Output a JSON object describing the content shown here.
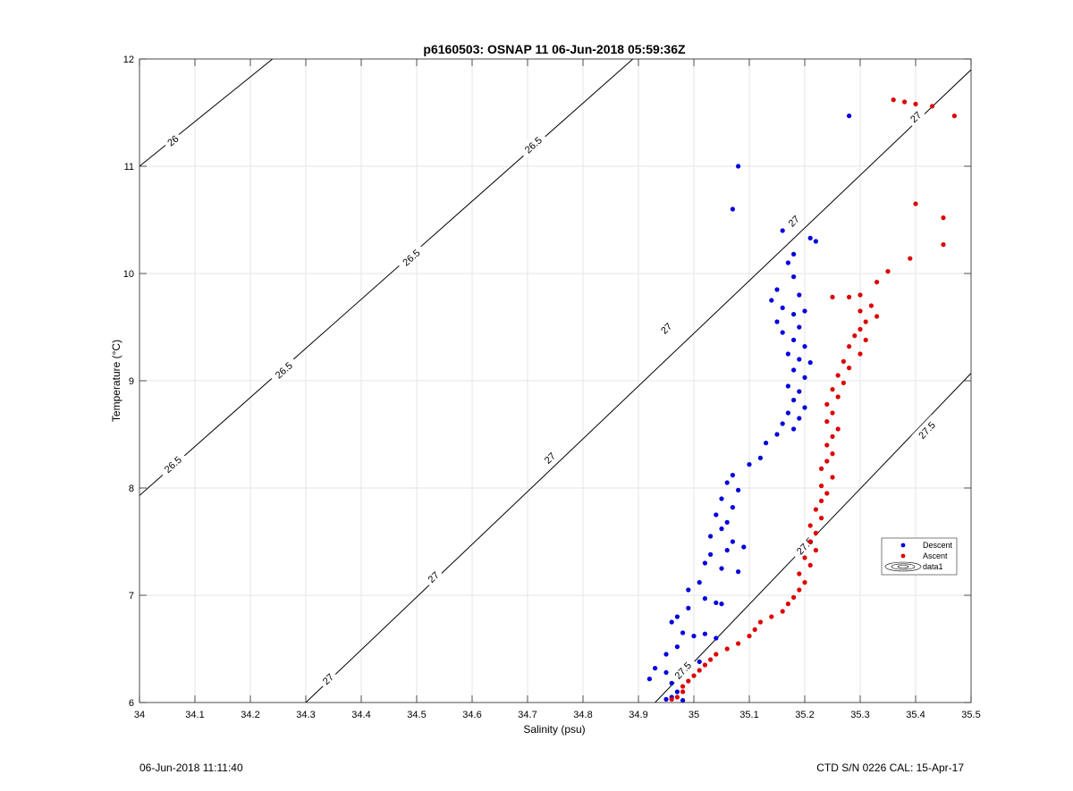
{
  "footer": {
    "timestamp": "06-Jun-2018 11:11:40",
    "instrument": "CTD S/N 0226  CAL: 15-Apr-17"
  },
  "chart_data": {
    "type": "scatter",
    "title": "p6160503: OSNAP 11 06-Jun-2018 05:59:36Z",
    "xlabel": "Salinity (psu)",
    "ylabel": "Temperature (°C)",
    "xlim": [
      34,
      35.5
    ],
    "ylim": [
      6,
      12
    ],
    "xticks": [
      34,
      34.1,
      34.2,
      34.3,
      34.4,
      34.5,
      34.6,
      34.7,
      34.8,
      34.9,
      35,
      35.1,
      35.2,
      35.3,
      35.4,
      35.5
    ],
    "xtick_labels": [
      "34",
      "34.1",
      "34.2",
      "34.3",
      "34.4",
      "34.5",
      "34.6",
      "34.7",
      "34.8",
      "34.9",
      "35",
      "35.1",
      "35.2",
      "35.3",
      "35.4",
      "35.5"
    ],
    "yticks": [
      6,
      7,
      8,
      9,
      10,
      11,
      12
    ],
    "ytick_labels": [
      "6",
      "7",
      "8",
      "9",
      "10",
      "11",
      "12"
    ],
    "grid": true,
    "legend_position": "right",
    "colors": {
      "descent": "#0000dd",
      "ascent": "#dd0000",
      "contour": "#000000",
      "grid": "#e6e6e6"
    },
    "legend": [
      {
        "label": "Descent",
        "marker": "dot",
        "color": "#0000dd"
      },
      {
        "label": "Ascent",
        "marker": "dot",
        "color": "#dd0000"
      },
      {
        "label": "data1",
        "marker": "contour",
        "color": "#000000"
      }
    ],
    "contours": [
      {
        "level": "26",
        "points": [
          [
            34.0,
            11.0
          ],
          [
            34.24,
            12.0
          ]
        ],
        "labels": [
          [
            34.06,
            11.24
          ]
        ]
      },
      {
        "level": "26.5",
        "points": [
          [
            34.0,
            7.93
          ],
          [
            34.89,
            12.0
          ]
        ],
        "labels": [
          [
            34.06,
            8.22
          ],
          [
            34.26,
            9.1
          ],
          [
            34.49,
            10.15
          ],
          [
            34.71,
            11.2
          ]
        ]
      },
      {
        "level": "27",
        "points": [
          [
            34.3,
            6.0
          ],
          [
            35.5,
            11.9
          ]
        ],
        "labels": [
          [
            34.34,
            6.22
          ],
          [
            34.53,
            7.17
          ],
          [
            34.74,
            8.28
          ],
          [
            34.95,
            9.49
          ],
          [
            35.18,
            10.49
          ],
          [
            35.4,
            11.46
          ]
        ]
      },
      {
        "level": "27.5",
        "points": [
          [
            34.93,
            6.0
          ],
          [
            35.5,
            9.07
          ]
        ],
        "labels": [
          [
            34.98,
            6.3
          ],
          [
            35.2,
            7.46
          ],
          [
            35.42,
            8.54
          ]
        ]
      }
    ],
    "series": [
      {
        "name": "Descent",
        "color": "#0000dd",
        "points": [
          [
            35.08,
            11.0
          ],
          [
            35.07,
            10.6
          ],
          [
            35.28,
            11.47
          ],
          [
            35.21,
            10.33
          ],
          [
            35.22,
            10.3
          ],
          [
            35.16,
            10.4
          ],
          [
            35.18,
            10.18
          ],
          [
            35.17,
            10.1
          ],
          [
            35.18,
            9.97
          ],
          [
            35.15,
            9.85
          ],
          [
            35.19,
            9.8
          ],
          [
            35.14,
            9.75
          ],
          [
            35.16,
            9.68
          ],
          [
            35.18,
            9.62
          ],
          [
            35.2,
            9.65
          ],
          [
            35.15,
            9.55
          ],
          [
            35.19,
            9.5
          ],
          [
            35.16,
            9.45
          ],
          [
            35.18,
            9.38
          ],
          [
            35.2,
            9.32
          ],
          [
            35.17,
            9.25
          ],
          [
            35.19,
            9.2
          ],
          [
            35.21,
            9.17
          ],
          [
            35.18,
            9.1
          ],
          [
            35.2,
            9.03
          ],
          [
            35.17,
            8.95
          ],
          [
            35.19,
            8.9
          ],
          [
            35.18,
            8.82
          ],
          [
            35.2,
            8.75
          ],
          [
            35.17,
            8.7
          ],
          [
            35.19,
            8.65
          ],
          [
            35.16,
            8.6
          ],
          [
            35.18,
            8.55
          ],
          [
            35.15,
            8.5
          ],
          [
            35.13,
            8.42
          ],
          [
            35.12,
            8.28
          ],
          [
            35.1,
            8.22
          ],
          [
            35.07,
            8.12
          ],
          [
            35.06,
            8.05
          ],
          [
            35.08,
            7.98
          ],
          [
            35.05,
            7.9
          ],
          [
            35.07,
            7.82
          ],
          [
            35.04,
            7.75
          ],
          [
            35.06,
            7.68
          ],
          [
            35.05,
            7.62
          ],
          [
            35.03,
            7.55
          ],
          [
            35.07,
            7.5
          ],
          [
            35.09,
            7.45
          ],
          [
            35.06,
            7.42
          ],
          [
            35.03,
            7.38
          ],
          [
            35.02,
            7.3
          ],
          [
            35.05,
            7.25
          ],
          [
            35.08,
            7.22
          ],
          [
            35.01,
            7.12
          ],
          [
            34.99,
            7.05
          ],
          [
            35.02,
            6.97
          ],
          [
            35.04,
            6.93
          ],
          [
            35.05,
            6.92
          ],
          [
            34.99,
            6.88
          ],
          [
            34.97,
            6.8
          ],
          [
            34.96,
            6.75
          ],
          [
            34.98,
            6.65
          ],
          [
            35.0,
            6.62
          ],
          [
            35.02,
            6.64
          ],
          [
            35.04,
            6.6
          ],
          [
            34.97,
            6.52
          ],
          [
            34.95,
            6.45
          ],
          [
            35.01,
            6.38
          ],
          [
            34.93,
            6.32
          ],
          [
            34.95,
            6.28
          ],
          [
            34.92,
            6.22
          ],
          [
            34.96,
            6.18
          ],
          [
            34.97,
            6.1
          ],
          [
            34.96,
            6.05
          ],
          [
            34.98,
            6.02
          ],
          [
            34.95,
            6.03
          ]
        ]
      },
      {
        "name": "Ascent",
        "color": "#dd0000",
        "points": [
          [
            35.36,
            11.62
          ],
          [
            35.38,
            11.6
          ],
          [
            35.4,
            11.58
          ],
          [
            35.43,
            11.56
          ],
          [
            35.47,
            11.47
          ],
          [
            35.4,
            10.65
          ],
          [
            35.45,
            10.52
          ],
          [
            35.45,
            10.27
          ],
          [
            35.39,
            10.14
          ],
          [
            35.35,
            10.02
          ],
          [
            35.33,
            9.92
          ],
          [
            35.3,
            9.8
          ],
          [
            35.28,
            9.78
          ],
          [
            35.25,
            9.78
          ],
          [
            35.32,
            9.7
          ],
          [
            35.3,
            9.65
          ],
          [
            35.33,
            9.6
          ],
          [
            35.31,
            9.55
          ],
          [
            35.3,
            9.48
          ],
          [
            35.29,
            9.42
          ],
          [
            35.31,
            9.38
          ],
          [
            35.28,
            9.32
          ],
          [
            35.3,
            9.25
          ],
          [
            35.27,
            9.18
          ],
          [
            35.28,
            9.12
          ],
          [
            35.26,
            9.05
          ],
          [
            35.27,
            8.98
          ],
          [
            35.25,
            8.92
          ],
          [
            35.26,
            8.85
          ],
          [
            35.24,
            8.78
          ],
          [
            35.25,
            8.7
          ],
          [
            35.24,
            8.62
          ],
          [
            35.26,
            8.55
          ],
          [
            35.25,
            8.48
          ],
          [
            35.24,
            8.4
          ],
          [
            35.25,
            8.32
          ],
          [
            35.24,
            8.25
          ],
          [
            35.23,
            8.18
          ],
          [
            35.25,
            8.1
          ],
          [
            35.23,
            8.02
          ],
          [
            35.24,
            7.95
          ],
          [
            35.23,
            7.88
          ],
          [
            35.22,
            7.8
          ],
          [
            35.23,
            7.72
          ],
          [
            35.21,
            7.65
          ],
          [
            35.22,
            7.58
          ],
          [
            35.21,
            7.5
          ],
          [
            35.22,
            7.42
          ],
          [
            35.2,
            7.35
          ],
          [
            35.21,
            7.28
          ],
          [
            35.19,
            7.2
          ],
          [
            35.2,
            7.12
          ],
          [
            35.19,
            7.05
          ],
          [
            35.18,
            6.98
          ],
          [
            35.17,
            6.92
          ],
          [
            35.16,
            6.85
          ],
          [
            35.14,
            6.8
          ],
          [
            35.12,
            6.75
          ],
          [
            35.11,
            6.68
          ],
          [
            35.1,
            6.62
          ],
          [
            35.08,
            6.55
          ],
          [
            35.06,
            6.5
          ],
          [
            35.04,
            6.45
          ],
          [
            35.03,
            6.4
          ],
          [
            35.02,
            6.35
          ],
          [
            35.01,
            6.3
          ],
          [
            35.0,
            6.25
          ],
          [
            34.99,
            6.2
          ],
          [
            34.98,
            6.15
          ],
          [
            34.98,
            6.1
          ],
          [
            34.97,
            6.05
          ],
          [
            34.96,
            6.03
          ]
        ]
      }
    ]
  }
}
